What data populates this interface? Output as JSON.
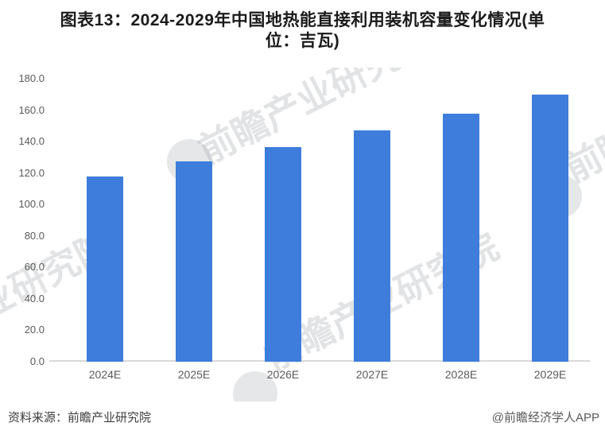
{
  "title": {
    "line1": "图表13：2024-2029年中国地热能直接利用装机容量变化情况(单",
    "line2": "位：吉瓦)"
  },
  "chart_data": {
    "type": "bar",
    "title": "图表13：2024-2029年中国地热能直接利用装机容量变化情况(单位：吉瓦)",
    "unit": "吉瓦",
    "categories": [
      "2024E",
      "2025E",
      "2026E",
      "2027E",
      "2028E",
      "2029E"
    ],
    "values": [
      118.0,
      127.5,
      136.5,
      147.0,
      158.0,
      170.0
    ],
    "ylim": [
      0,
      180
    ],
    "ytick_step": 20,
    "yticks": [
      "180.0",
      "160.0",
      "140.0",
      "120.0",
      "100.0",
      "80.0",
      "60.0",
      "40.0",
      "20.0",
      "0.0"
    ],
    "grid": false,
    "legend_position": "none",
    "bar_color": "#3E7DDB",
    "xlabel": "",
    "ylabel": ""
  },
  "footer": {
    "source": "资料来源：前瞻产业研究院",
    "credit": "@前瞻经济学人APP"
  },
  "watermark": {
    "text": "前瞻产业研究院",
    "color": "#aaaeb4"
  }
}
